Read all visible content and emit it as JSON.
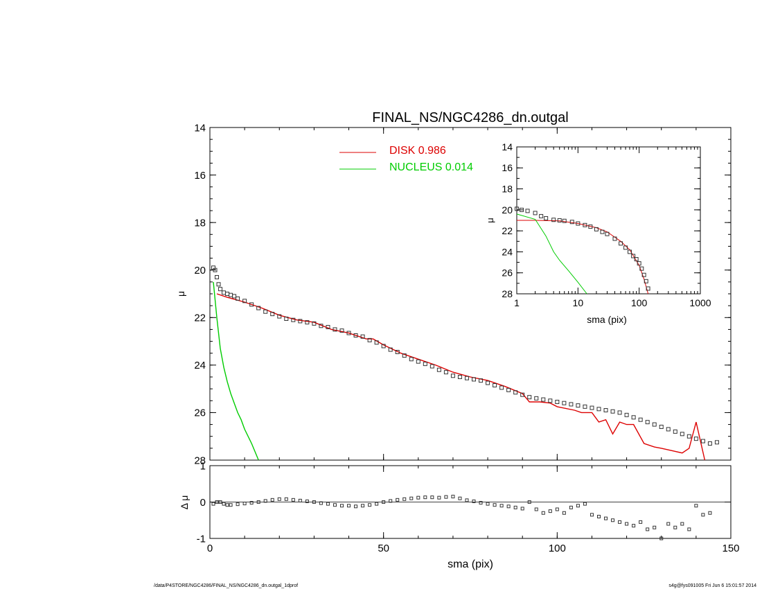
{
  "title": "FINAL_NS/NGC4286_dn.outgal",
  "footer": {
    "left": "/data/P4STORE/NGC4286/FINAL_NS/NGC4286_dn.outgal_1dprof",
    "right": "s4g@fys091005  Fri Jun  6 15:01:57 2014"
  },
  "colors": {
    "disk": "#dd0000",
    "nucleus": "#00cc00",
    "data": "#000000"
  },
  "legend": [
    {
      "label": "DISK  0.986",
      "color": "#dd0000"
    },
    {
      "label": "NUCLEUS  0.014",
      "color": "#00cc00"
    }
  ],
  "chart_data": [
    {
      "type": "line",
      "panel": "main",
      "xlabel": "sma (pix)",
      "ylabel": "μ",
      "xlim": [
        0,
        150
      ],
      "ylim": [
        28,
        14
      ],
      "xticks": [
        0,
        50,
        100,
        150
      ],
      "yticks": [
        14,
        16,
        18,
        20,
        22,
        24,
        26,
        28
      ],
      "series": [
        {
          "name": "DISK  0.986",
          "style": "line",
          "x": [
            2,
            5,
            10,
            15,
            20,
            25,
            30,
            35,
            40,
            45,
            47,
            50,
            55,
            60,
            65,
            70,
            75,
            80,
            85,
            90,
            92,
            95,
            98,
            100,
            105,
            107,
            110,
            112,
            114,
            116,
            118,
            120,
            122,
            125,
            128,
            130,
            133,
            136,
            138,
            140,
            142.5
          ],
          "y": [
            21.0,
            21.15,
            21.35,
            21.6,
            21.9,
            22.1,
            22.2,
            22.5,
            22.65,
            22.9,
            22.9,
            23.15,
            23.5,
            23.75,
            24.0,
            24.3,
            24.5,
            24.65,
            24.9,
            25.2,
            25.55,
            25.55,
            25.6,
            25.75,
            25.9,
            26.0,
            26.0,
            26.4,
            26.3,
            26.9,
            26.4,
            26.5,
            26.5,
            27.3,
            27.45,
            27.5,
            27.6,
            27.7,
            27.5,
            26.4,
            28.1
          ]
        },
        {
          "name": "NUCLEUS  0.014",
          "style": "line",
          "x": [
            1,
            2,
            3,
            4,
            5,
            6,
            7,
            8,
            9,
            10,
            12,
            14
          ],
          "y": [
            20.5,
            22.0,
            23.3,
            24.1,
            24.7,
            25.2,
            25.6,
            26.0,
            26.3,
            26.7,
            27.3,
            28.0
          ]
        },
        {
          "name": "data",
          "style": "markers",
          "x": [
            1,
            1.5,
            2,
            2.5,
            3,
            4,
            5,
            6,
            7,
            8,
            10,
            12,
            14,
            16,
            18,
            20,
            22,
            24,
            26,
            28,
            30,
            32,
            34,
            36,
            38,
            40,
            42,
            44,
            46,
            48,
            50,
            52,
            54,
            56,
            58,
            60,
            62,
            64,
            66,
            68,
            70,
            72,
            74,
            76,
            78,
            80,
            82,
            84,
            86,
            88,
            90,
            92,
            94,
            96,
            98,
            100,
            102,
            104,
            106,
            108,
            110,
            112,
            114,
            116,
            118,
            120,
            122,
            124,
            126,
            128,
            130,
            132,
            134,
            136,
            138,
            140,
            142,
            144,
            146
          ],
          "y": [
            19.9,
            20.0,
            20.3,
            20.6,
            20.8,
            20.95,
            21.0,
            21.05,
            21.1,
            21.2,
            21.3,
            21.45,
            21.6,
            21.75,
            21.85,
            21.95,
            22.05,
            22.1,
            22.15,
            22.2,
            22.25,
            22.35,
            22.4,
            22.5,
            22.55,
            22.65,
            22.75,
            22.8,
            22.95,
            23.05,
            23.2,
            23.35,
            23.45,
            23.6,
            23.75,
            23.85,
            23.95,
            24.05,
            24.2,
            24.3,
            24.45,
            24.5,
            24.55,
            24.6,
            24.65,
            24.75,
            24.85,
            24.95,
            25.05,
            25.15,
            25.25,
            25.35,
            25.4,
            25.45,
            25.5,
            25.55,
            25.6,
            25.65,
            25.7,
            25.75,
            25.8,
            25.85,
            25.9,
            25.95,
            26.0,
            26.1,
            26.2,
            26.3,
            26.4,
            26.5,
            26.6,
            26.7,
            26.8,
            26.9,
            27.0,
            27.1,
            27.2,
            27.3,
            27.25
          ]
        }
      ]
    },
    {
      "type": "scatter",
      "panel": "residuals",
      "xlabel": "sma (pix)",
      "ylabel": "Δ μ",
      "xlim": [
        0,
        150
      ],
      "ylim": [
        -1,
        1
      ],
      "yticks": [
        -1,
        0,
        1
      ],
      "series": [
        {
          "name": "residual",
          "x": [
            1,
            2,
            3,
            4,
            5,
            6,
            8,
            10,
            12,
            14,
            16,
            18,
            20,
            22,
            24,
            26,
            28,
            30,
            32,
            34,
            36,
            38,
            40,
            42,
            44,
            46,
            48,
            50,
            52,
            54,
            56,
            58,
            60,
            62,
            64,
            66,
            68,
            70,
            72,
            74,
            76,
            78,
            80,
            82,
            84,
            86,
            88,
            90,
            92,
            94,
            96,
            98,
            100,
            102,
            104,
            106,
            108,
            110,
            112,
            114,
            116,
            118,
            120,
            122,
            124,
            126,
            128,
            130,
            132,
            134,
            136,
            138,
            140,
            142,
            144
          ],
          "y": [
            -0.05,
            0.0,
            0.0,
            -0.05,
            -0.08,
            -0.08,
            -0.06,
            -0.04,
            -0.02,
            0.0,
            0.03,
            0.06,
            0.08,
            0.08,
            0.06,
            0.04,
            0.02,
            0.0,
            -0.03,
            -0.05,
            -0.08,
            -0.1,
            -0.1,
            -0.12,
            -0.1,
            -0.08,
            -0.05,
            0.0,
            0.03,
            0.06,
            0.08,
            0.1,
            0.12,
            0.13,
            0.13,
            0.12,
            0.14,
            0.15,
            0.1,
            0.05,
            0.02,
            -0.02,
            -0.05,
            -0.08,
            -0.1,
            -0.12,
            -0.15,
            -0.18,
            0.0,
            -0.2,
            -0.3,
            -0.25,
            -0.2,
            -0.3,
            -0.15,
            -0.1,
            -0.05,
            -0.35,
            -0.4,
            -0.45,
            -0.5,
            -0.55,
            -0.6,
            -0.65,
            -0.55,
            -0.75,
            -0.7,
            -1.0,
            -0.6,
            -0.7,
            -0.6,
            -0.75,
            -0.1,
            -0.35,
            -0.3
          ]
        }
      ]
    },
    {
      "type": "line",
      "panel": "inset",
      "xlabel": "sma (pix)",
      "ylabel": "μ",
      "xscale": "log",
      "xlim": [
        1,
        1000
      ],
      "ylim": [
        28,
        14
      ],
      "xticks": [
        1,
        10,
        100,
        1000
      ],
      "yticks": [
        14,
        16,
        18,
        20,
        22,
        24,
        26,
        28
      ],
      "series": [
        {
          "name": "DISK  0.986",
          "style": "line",
          "x": [
            1,
            2,
            5,
            10,
            20,
            30,
            50,
            70,
            100,
            120,
            140
          ],
          "y": [
            21.0,
            21.0,
            21.05,
            21.3,
            21.7,
            22.1,
            23.0,
            23.8,
            25.3,
            26.6,
            28.0
          ]
        },
        {
          "name": "NUCLEUS  0.014",
          "style": "line",
          "x": [
            1,
            2,
            3,
            4,
            5,
            7,
            10,
            14
          ],
          "y": [
            20.4,
            20.9,
            22.5,
            24.0,
            24.8,
            25.8,
            26.9,
            28.0
          ]
        },
        {
          "name": "data",
          "style": "markers",
          "x": [
            1,
            1.2,
            1.5,
            2,
            2.5,
            3,
            4,
            5,
            6,
            8,
            10,
            13,
            16,
            20,
            25,
            30,
            40,
            50,
            60,
            70,
            80,
            90,
            100,
            110,
            120,
            130,
            140
          ],
          "y": [
            19.9,
            20.0,
            20.1,
            20.3,
            20.6,
            20.8,
            20.95,
            21.0,
            21.05,
            21.15,
            21.3,
            21.45,
            21.6,
            21.85,
            22.1,
            22.3,
            22.75,
            23.2,
            23.6,
            24.0,
            24.4,
            24.7,
            25.1,
            25.6,
            26.2,
            26.8,
            27.5
          ]
        }
      ]
    }
  ]
}
